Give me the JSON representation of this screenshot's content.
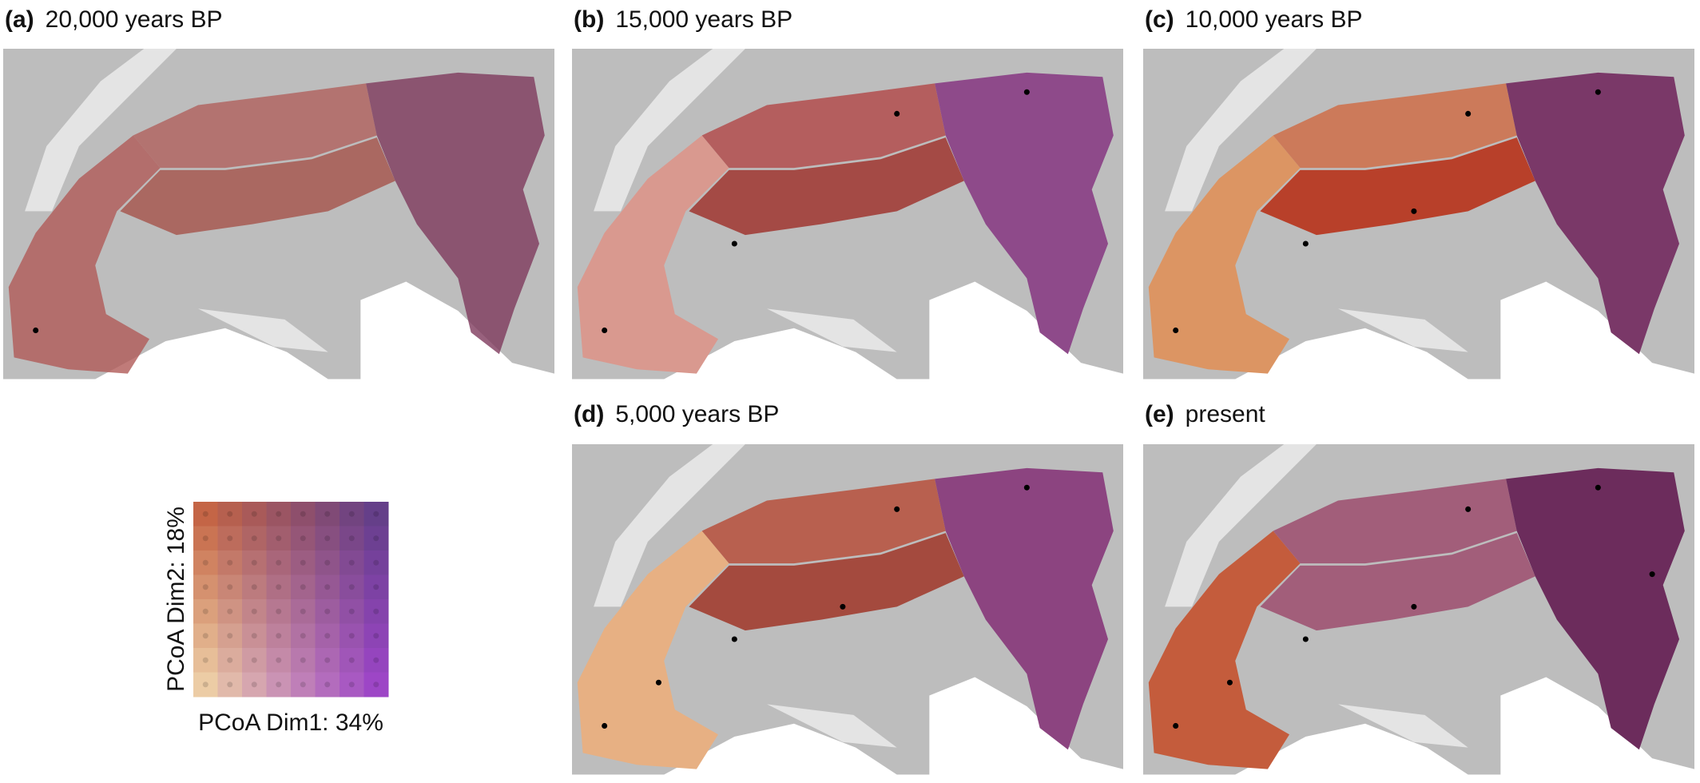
{
  "panels": [
    {
      "label": "(a)",
      "title": "20,000 years BP"
    },
    {
      "label": "(b)",
      "title": "15,000 years BP"
    },
    {
      "label": "(c)",
      "title": "10,000 years BP"
    },
    {
      "label": "(d)",
      "title": "5,000 years BP"
    },
    {
      "label": "(e)",
      "title": "present"
    }
  ],
  "legend": {
    "x_label": "PCoA Dim1: 34%",
    "y_label": "PCoA Dim2: 18%"
  }
}
